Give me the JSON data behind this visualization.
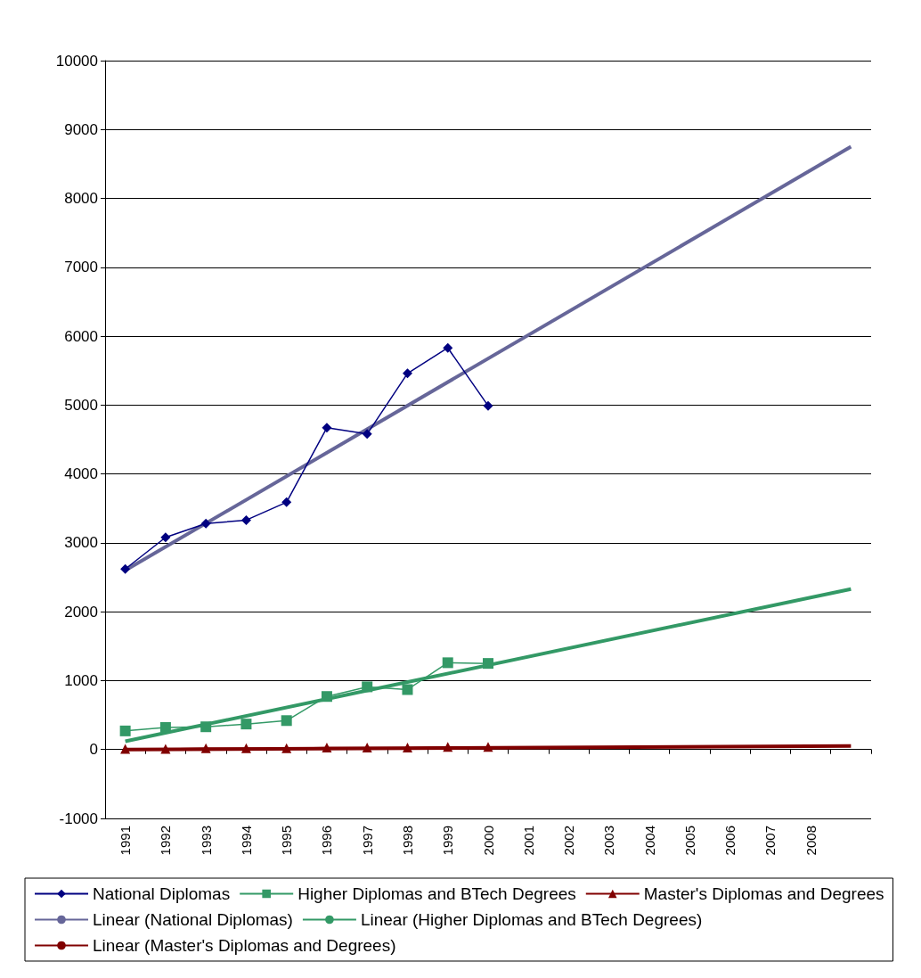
{
  "chart_data": {
    "type": "line",
    "categories": [
      "1991",
      "1992",
      "1993",
      "1994",
      "1995",
      "1996",
      "1997",
      "1998",
      "1999",
      "2000",
      "2001",
      "2002",
      "2003",
      "2004",
      "2005",
      "2006",
      "2007",
      "2008",
      null
    ],
    "series": [
      {
        "name": "National Diplomas",
        "color": "#000080",
        "marker": "diamond",
        "values": [
          2620,
          3080,
          3280,
          3330,
          3590,
          4670,
          4580,
          5460,
          5830,
          4990,
          null,
          null,
          null,
          null,
          null,
          null,
          null,
          null,
          null
        ]
      },
      {
        "name": "Higher Diplomas and BTech Degrees",
        "color": "#339966",
        "marker": "square",
        "values": [
          270,
          320,
          330,
          370,
          420,
          770,
          910,
          870,
          1260,
          1250,
          null,
          null,
          null,
          null,
          null,
          null,
          null,
          null,
          null
        ]
      },
      {
        "name": "Master's Diplomas and Degrees",
        "color": "#800000",
        "marker": "triangle",
        "values": [
          10,
          10,
          20,
          20,
          20,
          30,
          30,
          30,
          40,
          40,
          null,
          null,
          null,
          null,
          null,
          null,
          null,
          null,
          null
        ]
      },
      {
        "name": "Linear (National Diplomas)",
        "color": "#666699",
        "marker": "none",
        "values": [
          2600,
          null,
          null,
          null,
          null,
          null,
          null,
          null,
          null,
          null,
          null,
          null,
          null,
          null,
          null,
          null,
          null,
          null,
          8750
        ]
      },
      {
        "name": "Linear (Higher Diplomas and BTech Degrees)",
        "color": "#339966",
        "marker": "none",
        "values": [
          120,
          null,
          null,
          null,
          null,
          null,
          null,
          null,
          null,
          null,
          null,
          null,
          null,
          null,
          null,
          null,
          null,
          null,
          2330
        ]
      },
      {
        "name": "Linear (Master's Diplomas and Degrees)",
        "color": "#800000",
        "marker": "none",
        "values": [
          0,
          null,
          null,
          null,
          null,
          null,
          null,
          null,
          null,
          null,
          null,
          null,
          null,
          null,
          null,
          null,
          null,
          null,
          50
        ]
      }
    ],
    "ylim": [
      -1000,
      10000
    ],
    "yticks": [
      -1000,
      0,
      1000,
      2000,
      3000,
      4000,
      5000,
      6000,
      7000,
      8000,
      9000,
      10000
    ],
    "grid": "y",
    "legend": "bottom"
  }
}
